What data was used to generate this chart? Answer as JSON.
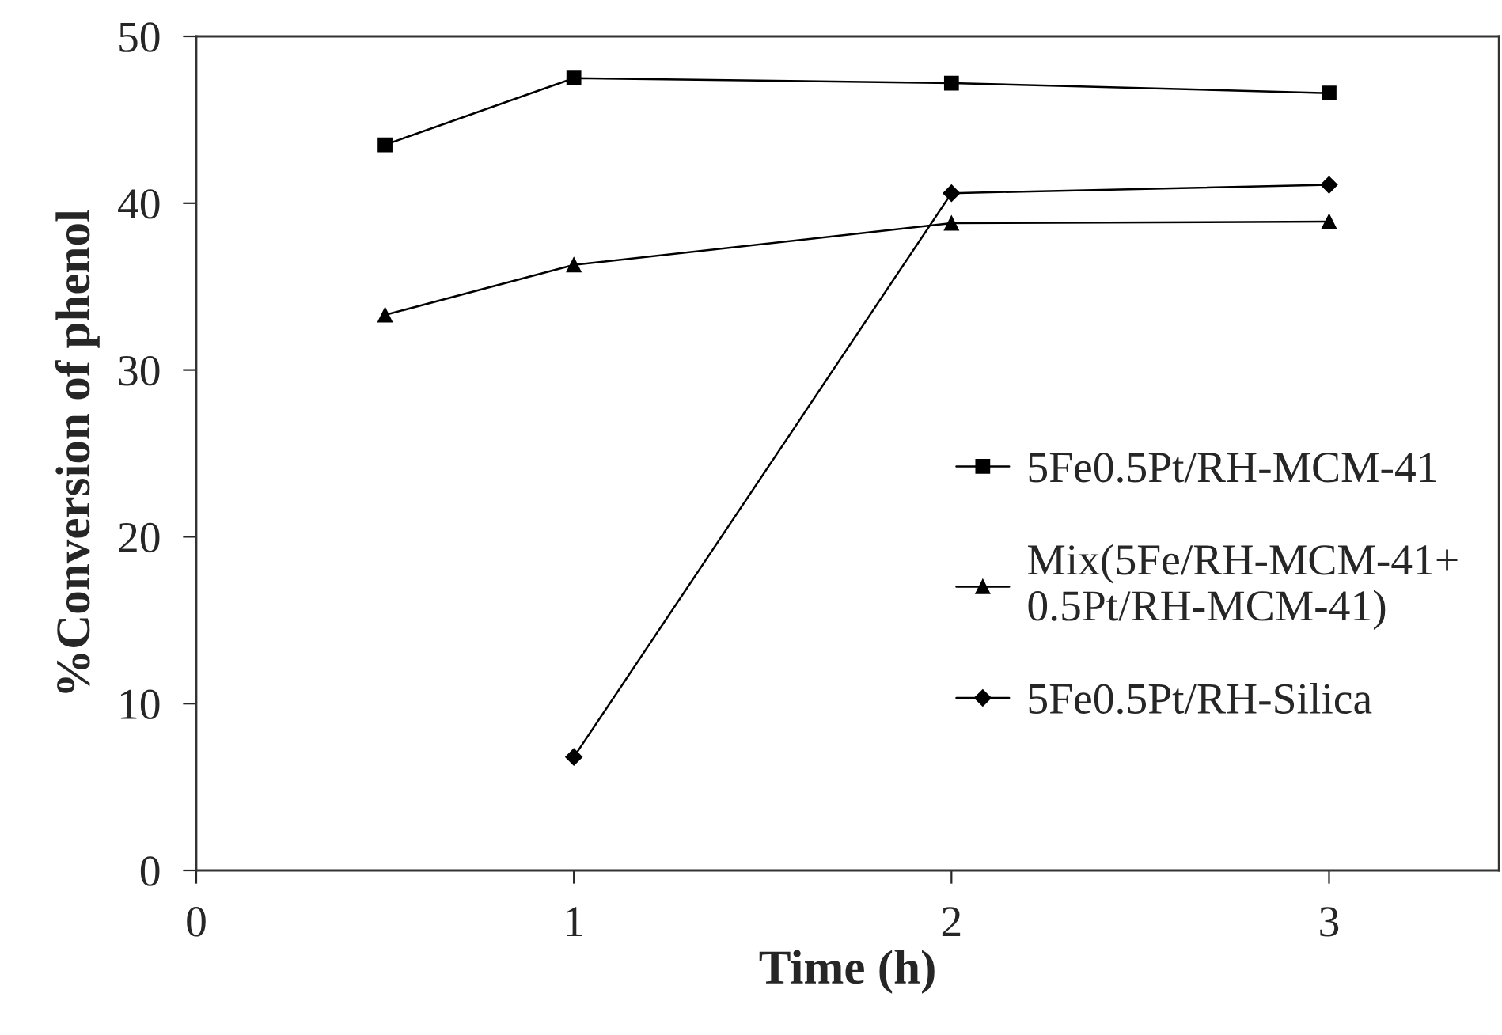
{
  "chart_data": {
    "type": "line",
    "xlabel": "Time (h)",
    "ylabel": "%Conversion of phenol",
    "xlim": [
      0,
      3.45
    ],
    "xticks": [
      0,
      1,
      2,
      3
    ],
    "ylim": [
      0,
      50
    ],
    "yticks": [
      0,
      10,
      20,
      30,
      40,
      50
    ],
    "grid": false,
    "legend": "right",
    "line_style": "solid",
    "series": [
      {
        "name": "5Fe0.5Pt/RH-MCM-41",
        "color": "#000000",
        "marker": "square",
        "x": [
          0.5,
          1,
          2,
          3
        ],
        "values": [
          43.5,
          47.5,
          47.2,
          46.6
        ]
      },
      {
        "name": "Mix(5Fe/RH-MCM-41+\n0.5Pt/RH-MCM-41)",
        "color": "#000000",
        "marker": "triangle",
        "x": [
          0.5,
          1,
          2,
          3
        ],
        "values": [
          33.3,
          36.3,
          38.8,
          38.9
        ]
      },
      {
        "name": "5Fe0.5Pt/RH-Silica",
        "color": "#000000",
        "marker": "diamond",
        "x": [
          1,
          2,
          3
        ],
        "values": [
          6.8,
          40.6,
          41.1
        ]
      }
    ]
  }
}
